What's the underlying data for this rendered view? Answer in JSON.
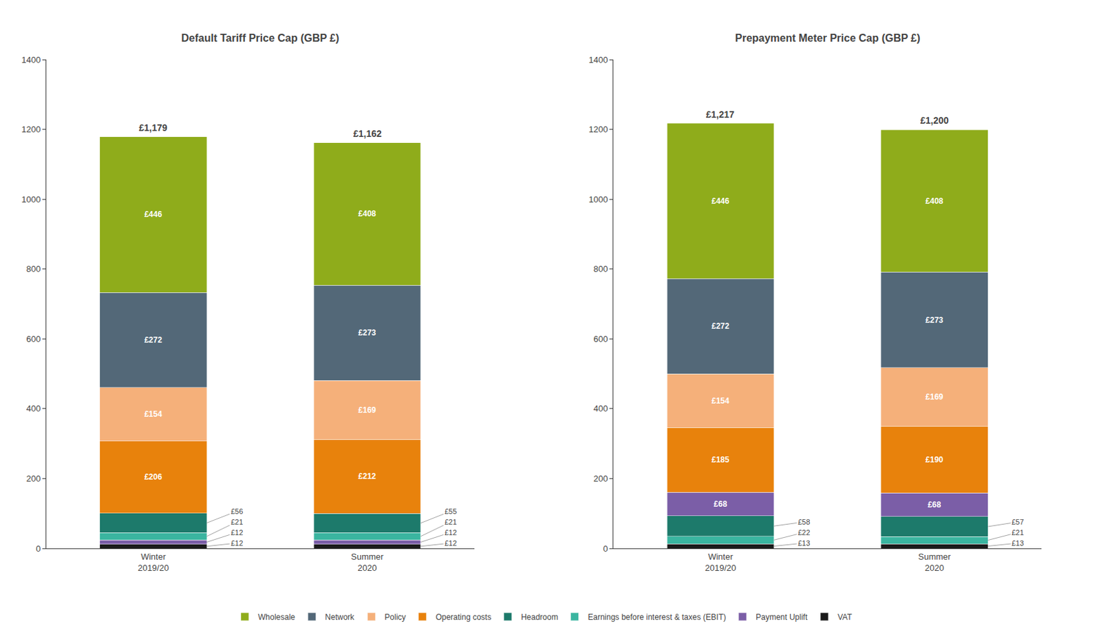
{
  "chart_data": [
    {
      "type": "bar",
      "stacked": true,
      "title": "Default Tariff Price Cap (GBP £)",
      "categories": [
        "Winter\n2019/20",
        "Summer\n2020"
      ],
      "series": [
        {
          "name": "VAT",
          "color": "#1a1a1a",
          "values": [
            12,
            12
          ],
          "value_labels": [
            "£12",
            "£12"
          ]
        },
        {
          "name": "Payment Uplift",
          "color": "#7b5ea7",
          "values": [
            12,
            12
          ],
          "value_labels": [
            "£12",
            "£12"
          ]
        },
        {
          "name": "Earnings before interest & taxes (EBIT)",
          "color": "#3ab5a0",
          "values": [
            21,
            21
          ],
          "value_labels": [
            "£21",
            "£21"
          ]
        },
        {
          "name": "Headroom",
          "color": "#1d7a6b",
          "values": [
            56,
            55
          ],
          "value_labels": [
            "£56",
            "£55"
          ]
        },
        {
          "name": "Operating costs",
          "color": "#e8820c",
          "values": [
            206,
            212
          ],
          "value_labels": [
            "£206",
            "£212"
          ]
        },
        {
          "name": "Policy",
          "color": "#f5b07a",
          "values": [
            154,
            169
          ],
          "value_labels": [
            "£154",
            "£169"
          ]
        },
        {
          "name": "Network",
          "color": "#536878",
          "values": [
            272,
            273
          ],
          "value_labels": [
            "£272",
            "£273"
          ]
        },
        {
          "name": "Wholesale",
          "color": "#8fac1b",
          "values": [
            446,
            408
          ],
          "value_labels": [
            "£446",
            "£408"
          ]
        }
      ],
      "totals": [
        1179,
        1162
      ],
      "total_labels": [
        "£1,179",
        "£1,162"
      ],
      "ylim": [
        0,
        1400
      ],
      "yticks": [
        0,
        200,
        400,
        600,
        800,
        1000,
        1200,
        1400
      ],
      "grid": false,
      "data_labels": true,
      "legend": "bottom"
    },
    {
      "type": "bar",
      "stacked": true,
      "title": "Prepayment Meter Price Cap (GBP £)",
      "categories": [
        "Winter\n2019/20",
        "Summer\n2020"
      ],
      "series": [
        {
          "name": "VAT",
          "color": "#1a1a1a",
          "values": [
            13,
            13
          ],
          "value_labels": [
            "£13",
            "£13"
          ]
        },
        {
          "name": "Earnings before interest & taxes (EBIT)",
          "color": "#3ab5a0",
          "values": [
            22,
            21
          ],
          "value_labels": [
            "£22",
            "£21"
          ]
        },
        {
          "name": "Headroom",
          "color": "#1d7a6b",
          "values": [
            58,
            57
          ],
          "value_labels": [
            "£58",
            "£57"
          ]
        },
        {
          "name": "Payment Uplift",
          "color": "#7b5ea7",
          "values": [
            68,
            68
          ],
          "value_labels": [
            "£68",
            "£68"
          ]
        },
        {
          "name": "Operating costs",
          "color": "#e8820c",
          "values": [
            185,
            190
          ],
          "value_labels": [
            "£185",
            "£190"
          ]
        },
        {
          "name": "Policy",
          "color": "#f5b07a",
          "values": [
            154,
            169
          ],
          "value_labels": [
            "£154",
            "£169"
          ]
        },
        {
          "name": "Network",
          "color": "#536878",
          "values": [
            272,
            273
          ],
          "value_labels": [
            "£272",
            "£273"
          ]
        },
        {
          "name": "Wholesale",
          "color": "#8fac1b",
          "values": [
            446,
            408
          ],
          "value_labels": [
            "£446",
            "£408"
          ]
        }
      ],
      "totals": [
        1217,
        1200
      ],
      "total_labels": [
        "£1,217",
        "£1,200"
      ],
      "ylim": [
        0,
        1400
      ],
      "yticks": [
        0,
        200,
        400,
        600,
        800,
        1000,
        1200,
        1400
      ],
      "grid": false,
      "data_labels": true
    }
  ]
}
